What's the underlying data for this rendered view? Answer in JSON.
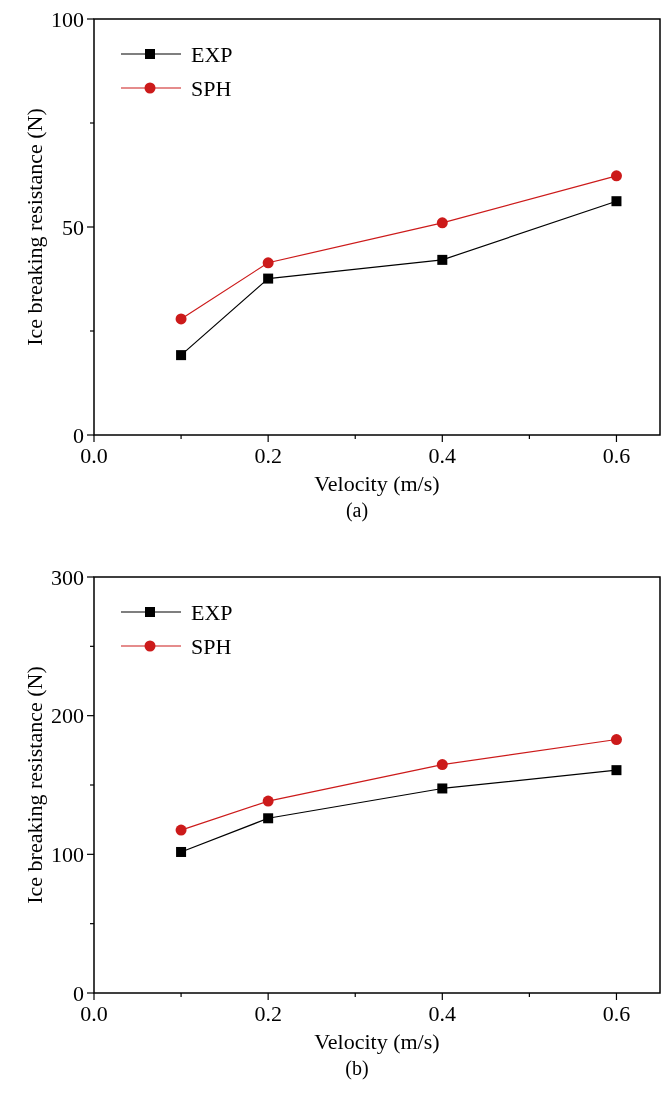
{
  "chart_data": [
    {
      "type": "line",
      "xlabel": "Velocity (m/s)",
      "ylabel": "Ice breaking resistance (N)",
      "annotations": [
        "(a)"
      ],
      "x": [
        0.1,
        0.2,
        0.4,
        0.6
      ],
      "xlim": [
        0,
        0.65
      ],
      "xticks": [
        {
          "value": 0,
          "label": "0.0"
        },
        {
          "value": 0.1,
          "label": null
        },
        0.2,
        {
          "value": 0.3,
          "label": null
        },
        0.4,
        {
          "value": 0.5,
          "label": null
        },
        0.6
      ],
      "ylim": [
        0,
        100
      ],
      "yticks": [
        0,
        {
          "value": 25,
          "label": null
        },
        50,
        {
          "value": 75,
          "label": null
        },
        100
      ],
      "grid": false,
      "legend": "top left",
      "line_style": "solid",
      "series": [
        {
          "name": "EXP",
          "color": "#000000",
          "marker": "square",
          "values": [
            19.2,
            37.6,
            42.1,
            56.2
          ]
        },
        {
          "name": "SPH",
          "color": "#cc1a1a",
          "marker": "circle",
          "values": [
            27.9,
            41.4,
            51.0,
            62.3
          ]
        }
      ]
    },
    {
      "type": "line",
      "xlabel": "Velocity (m/s)",
      "ylabel": "Ice breaking resistance (N)",
      "annotations": [
        "(b)"
      ],
      "x": [
        0.1,
        0.2,
        0.4,
        0.6
      ],
      "xlim": [
        0,
        0.65
      ],
      "xticks": [
        {
          "value": 0,
          "label": "0.0"
        },
        {
          "value": 0.1,
          "label": null
        },
        0.2,
        {
          "value": 0.3,
          "label": null
        },
        0.4,
        {
          "value": 0.5,
          "label": null
        },
        0.6
      ],
      "ylim": [
        0,
        300
      ],
      "yticks": [
        0,
        {
          "value": 50,
          "label": null
        },
        100,
        {
          "value": 150,
          "label": null
        },
        200,
        {
          "value": 250,
          "label": null
        },
        300
      ],
      "grid": false,
      "legend": "top left",
      "line_style": "solid",
      "series": [
        {
          "name": "EXP",
          "color": "#000000",
          "marker": "square",
          "values": [
            101.7,
            126,
            147.5,
            160.7
          ]
        },
        {
          "name": "SPH",
          "color": "#cc1a1a",
          "marker": "circle",
          "values": [
            117.5,
            138.4,
            164.7,
            182.8
          ]
        }
      ]
    }
  ]
}
